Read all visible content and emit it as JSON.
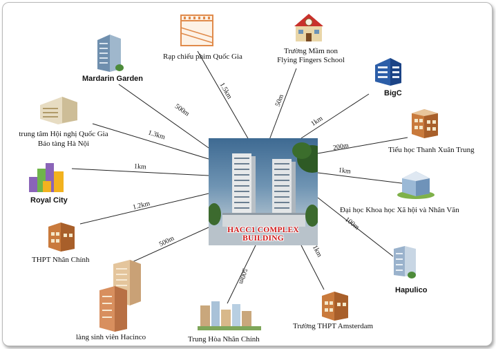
{
  "center": {
    "title": "HACC1 COMPLEX BUILDING"
  },
  "nodes": [
    {
      "id": "mardarin",
      "label": "Mardarin Garden",
      "distance": "500m"
    },
    {
      "id": "cinema",
      "label": "Rạp chiếu phim Quốc Gia",
      "distance": "1.5km"
    },
    {
      "id": "kindergarten",
      "label1": "Trường Mầm non",
      "label2": "Flying Fingers School",
      "distance": "50m"
    },
    {
      "id": "bigc",
      "label": "BigC",
      "distance": "1km"
    },
    {
      "id": "convention",
      "label1": "trung tâm Hội nghị Quốc Gia",
      "label2": "Bảo tàng Hà Nội",
      "distance": "1.3km"
    },
    {
      "id": "primary",
      "label": "Tiểu học Thanh Xuân Trung",
      "distance": "200m"
    },
    {
      "id": "royal",
      "label": "Royal City",
      "distance": "1km"
    },
    {
      "id": "university",
      "label": "Đại học Khoa học Xã hội và Nhân Văn",
      "distance": "1km"
    },
    {
      "id": "nhanchinh_hs",
      "label": "THPT Nhân Chính",
      "distance": "1.2km"
    },
    {
      "id": "hapulico",
      "label": "Hapulico",
      "distance": "100m"
    },
    {
      "id": "hacinco",
      "label": "làng sinh viên Hacinco",
      "distance": "500m"
    },
    {
      "id": "trunghoa",
      "label": "Trung Hòa Nhân Chính",
      "distance": "500m"
    },
    {
      "id": "amsterdam",
      "label": "Trường THPT Amsterdam",
      "distance": "1km"
    }
  ]
}
